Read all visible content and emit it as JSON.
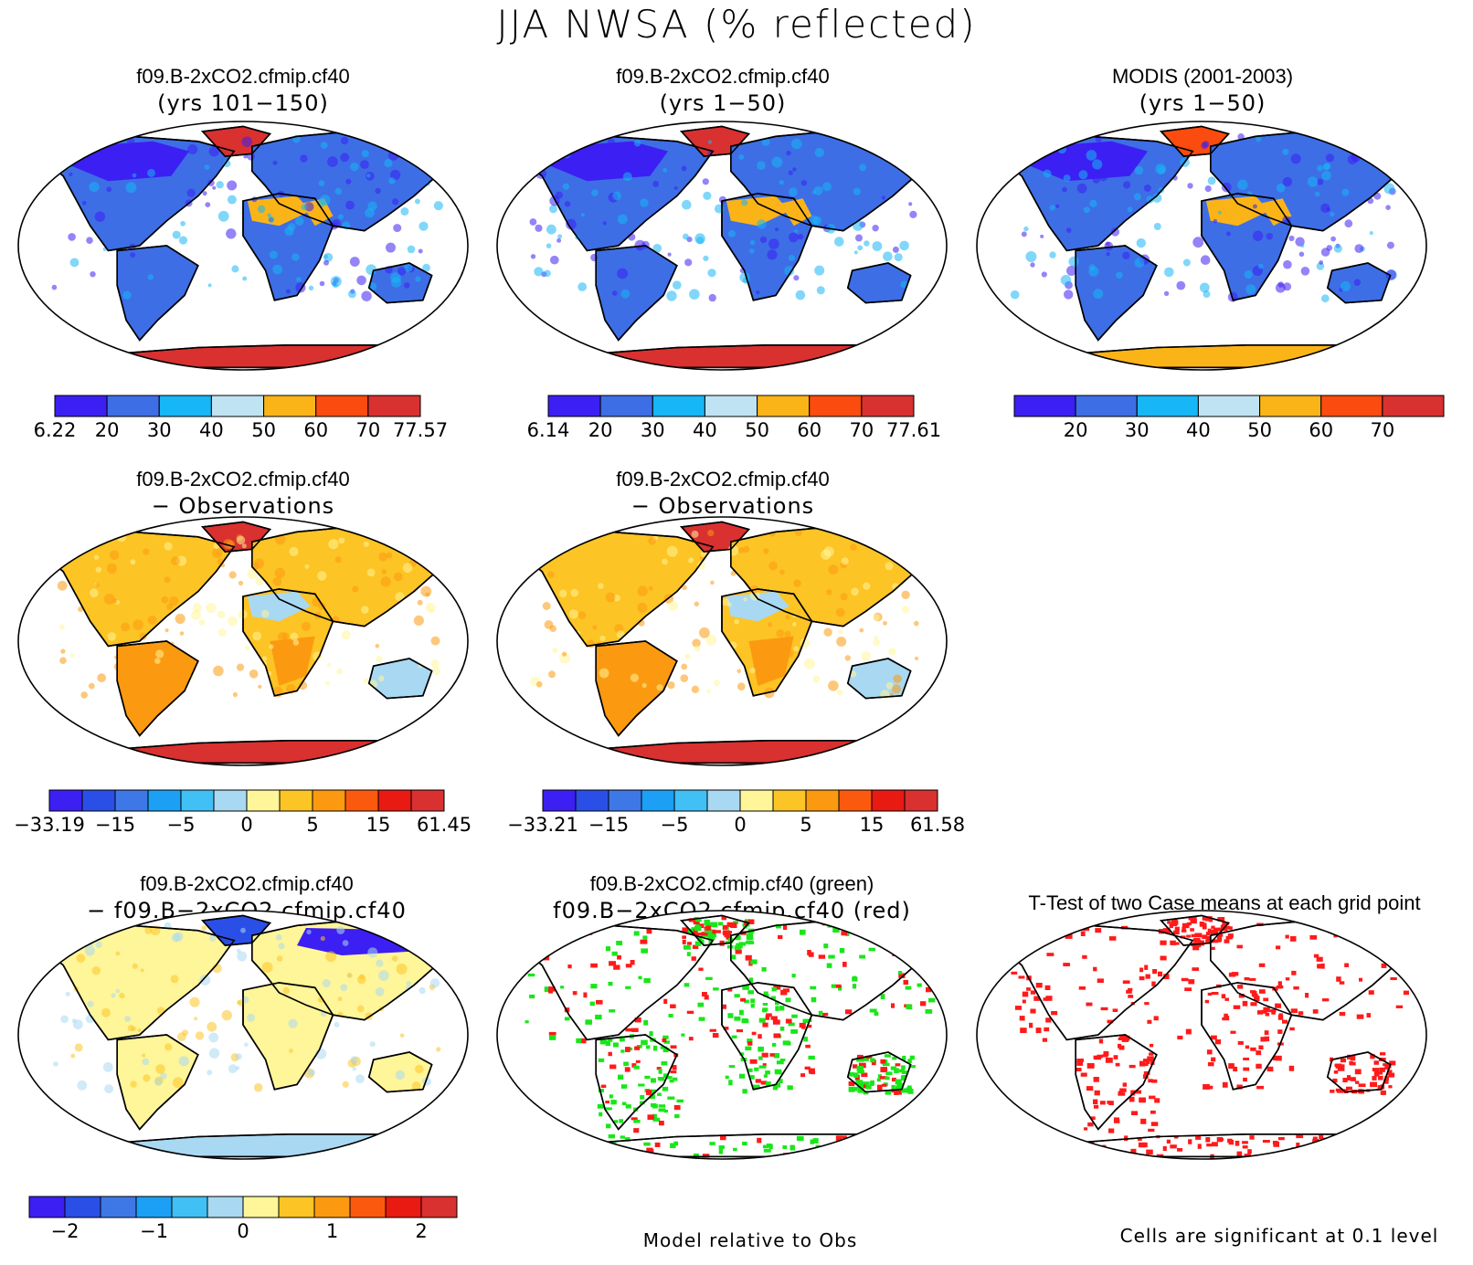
{
  "figure": {
    "title": "JJA NWSA (% reflected)",
    "footnotes": {
      "model_relative": "Model relative to Obs",
      "significance": "Cells are significant at 0.1 level"
    }
  },
  "colors": {
    "abs": [
      "#3c1ff2",
      "#3d6ee6",
      "#17b6f5",
      "#bfe3f3",
      "#fbb417",
      "#fb4b0e",
      "#d93030"
    ],
    "diff": [
      "#3c1ff2",
      "#2a4fe6",
      "#3d78e6",
      "#1ba0f5",
      "#40c0f5",
      "#a9d8f2",
      "#fff599",
      "#fcc424",
      "#fb9a10",
      "#fb5a0e",
      "#e81a12",
      "#d93030"
    ],
    "ocean": "#ffffff",
    "green_marker": "#19e619",
    "red_marker": "#ff1a1a"
  },
  "chart_data": [
    {
      "type": "heatmap",
      "id": "case1-abs",
      "title": "f09.B-2xCO2.cfmip.cf40",
      "subtitle": "(yrs 101−150)",
      "colorbar": {
        "min": 6.22,
        "max": 77.57,
        "ticks": [
          "6.22",
          "20",
          "30",
          "40",
          "50",
          "60",
          "70",
          "77.57"
        ]
      },
      "regions": {
        "greenland": 6,
        "antarctica": 6,
        "sahara": 4,
        "arabia": 4,
        "canada": 0,
        "siberia": 1,
        "default": 1
      }
    },
    {
      "type": "heatmap",
      "id": "case2-abs",
      "title": "f09.B-2xCO2.cfmip.cf40",
      "subtitle": "(yrs 1−50)",
      "colorbar": {
        "min": 6.14,
        "max": 77.61,
        "ticks": [
          "6.14",
          "20",
          "30",
          "40",
          "50",
          "60",
          "70",
          "77.61"
        ]
      },
      "regions": {
        "greenland": 6,
        "antarctica": 6,
        "sahara": 4,
        "arabia": 4,
        "canada": 0,
        "siberia": 1,
        "default": 1
      }
    },
    {
      "type": "heatmap",
      "id": "obs-abs",
      "title": "MODIS (2001-2003)",
      "subtitle": "(yrs 1−50)",
      "colorbar": {
        "ticks": [
          "20",
          "30",
          "40",
          "50",
          "60",
          "70"
        ]
      },
      "regions": {
        "greenland": 5,
        "antarctica": 4,
        "sahara": 4,
        "arabia": 4,
        "canada": 0,
        "siberia": 1,
        "default": 1
      }
    },
    {
      "type": "heatmap",
      "id": "case1-minus-obs",
      "title": "f09.B-2xCO2.cfmip.cf40",
      "subtitle": "− Observations",
      "colorbar": {
        "min": -33.19,
        "max": 61.45,
        "ticks": [
          "−33.19",
          "−15",
          "−5",
          "0",
          "5",
          "15",
          "61.45"
        ]
      },
      "regions": {
        "greenland": 11,
        "antarctica": 11,
        "sahara": 5,
        "south_america": 8,
        "south_africa": 8,
        "australia": 5,
        "default": 7
      }
    },
    {
      "type": "heatmap",
      "id": "case2-minus-obs",
      "title": "f09.B-2xCO2.cfmip.cf40",
      "subtitle": "− Observations",
      "colorbar": {
        "min": -33.21,
        "max": 61.58,
        "ticks": [
          "−33.21",
          "−15",
          "−5",
          "0",
          "5",
          "15",
          "61.58"
        ]
      },
      "regions": {
        "greenland": 11,
        "antarctica": 11,
        "sahara": 5,
        "south_america": 8,
        "south_africa": 8,
        "australia": 5,
        "default": 7
      }
    },
    {
      "type": "heatmap",
      "id": "case1-minus-case2",
      "title": "f09.B-2xCO2.cfmip.cf40",
      "subtitle": "− f09.B−2xCO2.cfmip.cf40",
      "colorbar": {
        "ticks": [
          "−2",
          "−1",
          "0",
          "1",
          "2"
        ]
      },
      "regions": {
        "greenland": 1,
        "siberia": 0,
        "antarctica": 5,
        "sahara": 6,
        "default": 6
      }
    },
    {
      "type": "heatmap",
      "id": "model-relative",
      "title": "f09.B-2xCO2.cfmip.cf40 (green)",
      "subtitle": "f09.B−2xCO2.cfmip.cf40 (red)",
      "legend": [
        "green",
        "red"
      ]
    },
    {
      "type": "heatmap",
      "id": "t-test",
      "title": "T-Test of two Case means at each grid point",
      "subtitle": ""
    }
  ]
}
